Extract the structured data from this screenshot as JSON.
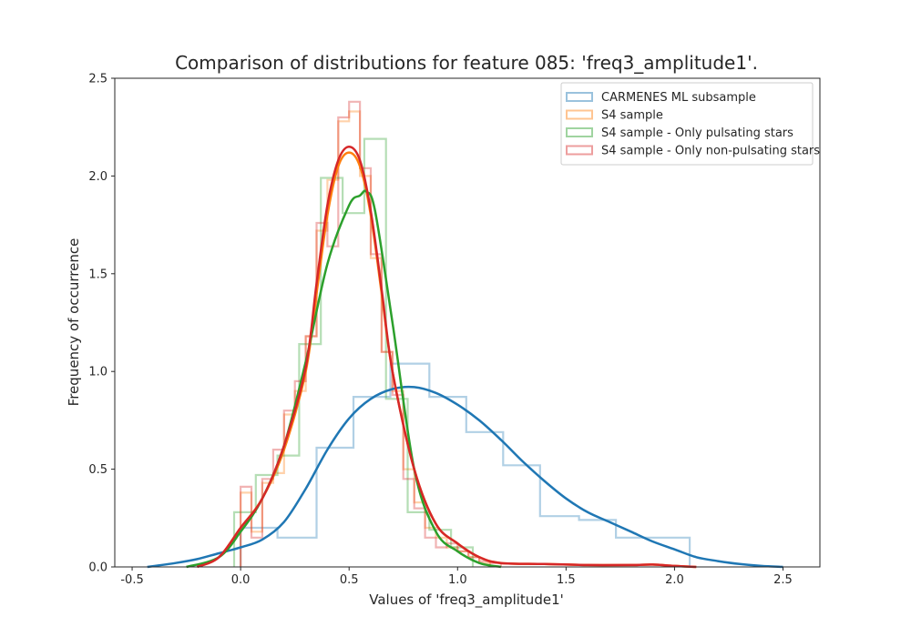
{
  "chart_data": {
    "type": "histogram",
    "title": "Comparison of distributions for feature 085: 'freq3_amplitude1'.",
    "xlabel": "Values of 'freq3_amplitude1'",
    "ylabel": "Frequency of occurrence",
    "xlim": [
      -0.58,
      2.67
    ],
    "ylim": [
      0,
      2.5
    ],
    "xticks": [
      "-0.5",
      "0.0",
      "0.5",
      "1.0",
      "1.5",
      "2.0",
      "2.5"
    ],
    "yticks": [
      "0.0",
      "0.5",
      "1.0",
      "1.5",
      "2.0",
      "2.5"
    ],
    "grid": false,
    "legend_position": "upper right",
    "series": [
      {
        "name": "CARMENES ML subsample",
        "color": "#1f77b4",
        "hist_edges": [
          0.0,
          0.17,
          0.35,
          0.52,
          0.69,
          0.87,
          1.04,
          1.21,
          1.38,
          1.56,
          1.73,
          1.9,
          2.07
        ],
        "hist_values": [
          0.2,
          0.15,
          0.61,
          0.87,
          1.04,
          0.87,
          0.69,
          0.52,
          0.26,
          0.24,
          0.15,
          0.15
        ],
        "kde_x": [
          -0.43,
          -0.3,
          -0.2,
          -0.1,
          0.0,
          0.1,
          0.2,
          0.3,
          0.4,
          0.5,
          0.6,
          0.7,
          0.8,
          0.9,
          1.0,
          1.1,
          1.2,
          1.3,
          1.4,
          1.5,
          1.6,
          1.7,
          1.8,
          1.9,
          2.0,
          2.1,
          2.2,
          2.3,
          2.4,
          2.5
        ],
        "kde_y": [
          0.0,
          0.02,
          0.04,
          0.07,
          0.1,
          0.14,
          0.23,
          0.4,
          0.6,
          0.76,
          0.86,
          0.91,
          0.92,
          0.89,
          0.83,
          0.75,
          0.65,
          0.54,
          0.44,
          0.35,
          0.28,
          0.23,
          0.18,
          0.13,
          0.09,
          0.05,
          0.03,
          0.015,
          0.005,
          0.0
        ]
      },
      {
        "name": "S4 sample",
        "color": "#ff7f0e",
        "hist_edges": [
          0.0,
          0.05,
          0.1,
          0.15,
          0.2,
          0.25,
          0.3,
          0.35,
          0.4,
          0.45,
          0.5,
          0.55,
          0.6,
          0.65,
          0.7,
          0.75,
          0.8,
          0.85,
          0.9,
          0.95,
          1.0,
          1.05,
          1.1,
          1.15
        ],
        "hist_values": [
          0.38,
          0.18,
          0.43,
          0.48,
          0.78,
          0.9,
          1.18,
          1.72,
          1.98,
          2.28,
          2.33,
          2.0,
          1.58,
          1.1,
          0.9,
          0.5,
          0.33,
          0.2,
          0.15,
          0.1,
          0.08,
          0.05,
          0.02
        ],
        "kde_x": [
          -0.2,
          -0.1,
          0.0,
          0.1,
          0.2,
          0.3,
          0.35,
          0.4,
          0.45,
          0.5,
          0.55,
          0.6,
          0.65,
          0.7,
          0.8,
          0.9,
          1.0,
          1.1,
          1.2,
          1.4,
          1.6,
          1.8,
          1.9,
          2.0,
          2.1
        ],
        "kde_y": [
          0.0,
          0.05,
          0.2,
          0.35,
          0.6,
          1.0,
          1.4,
          1.8,
          2.05,
          2.12,
          2.05,
          1.8,
          1.4,
          1.0,
          0.5,
          0.22,
          0.12,
          0.05,
          0.02,
          0.015,
          0.01,
          0.01,
          0.012,
          0.005,
          0.0
        ]
      },
      {
        "name": "S4 sample - Only pulsating stars",
        "color": "#2ca02c",
        "hist_edges": [
          -0.03,
          0.07,
          0.17,
          0.27,
          0.37,
          0.47,
          0.57,
          0.67,
          0.77,
          0.87,
          0.97,
          1.07
        ],
        "hist_values": [
          0.28,
          0.47,
          0.57,
          1.14,
          1.99,
          1.81,
          2.19,
          0.86,
          0.28,
          0.19,
          0.1
        ],
        "kde_x": [
          -0.25,
          -0.1,
          0.0,
          0.1,
          0.2,
          0.3,
          0.4,
          0.5,
          0.55,
          0.58,
          0.62,
          0.7,
          0.8,
          0.9,
          1.0,
          1.1,
          1.2
        ],
        "kde_y": [
          0.0,
          0.05,
          0.18,
          0.35,
          0.62,
          1.05,
          1.55,
          1.85,
          1.9,
          1.92,
          1.82,
          1.25,
          0.5,
          0.18,
          0.08,
          0.02,
          0.0
        ]
      },
      {
        "name": "S4 sample - Only non-pulsating stars",
        "color": "#d62728",
        "hist_edges": [
          0.0,
          0.05,
          0.1,
          0.15,
          0.2,
          0.25,
          0.3,
          0.35,
          0.4,
          0.45,
          0.5,
          0.55,
          0.6,
          0.65,
          0.7,
          0.75,
          0.8,
          0.85,
          0.9,
          0.95,
          1.0,
          1.05,
          1.1,
          1.15,
          1.2
        ],
        "hist_values": [
          0.41,
          0.15,
          0.45,
          0.6,
          0.8,
          0.95,
          1.18,
          1.76,
          1.64,
          2.3,
          2.38,
          2.04,
          1.6,
          1.1,
          0.88,
          0.45,
          0.3,
          0.15,
          0.1,
          0.12,
          0.08,
          0.05,
          0.03,
          0.02
        ],
        "kde_x": [
          -0.2,
          -0.1,
          0.0,
          0.1,
          0.2,
          0.3,
          0.35,
          0.4,
          0.45,
          0.5,
          0.55,
          0.6,
          0.65,
          0.7,
          0.8,
          0.9,
          1.0,
          1.1,
          1.2,
          1.4,
          1.6,
          1.8,
          1.9,
          2.0,
          2.1
        ],
        "kde_y": [
          0.0,
          0.05,
          0.2,
          0.35,
          0.62,
          1.02,
          1.45,
          1.85,
          2.08,
          2.15,
          2.08,
          1.82,
          1.42,
          1.0,
          0.5,
          0.22,
          0.12,
          0.05,
          0.02,
          0.015,
          0.01,
          0.01,
          0.012,
          0.005,
          0.0
        ]
      }
    ]
  }
}
